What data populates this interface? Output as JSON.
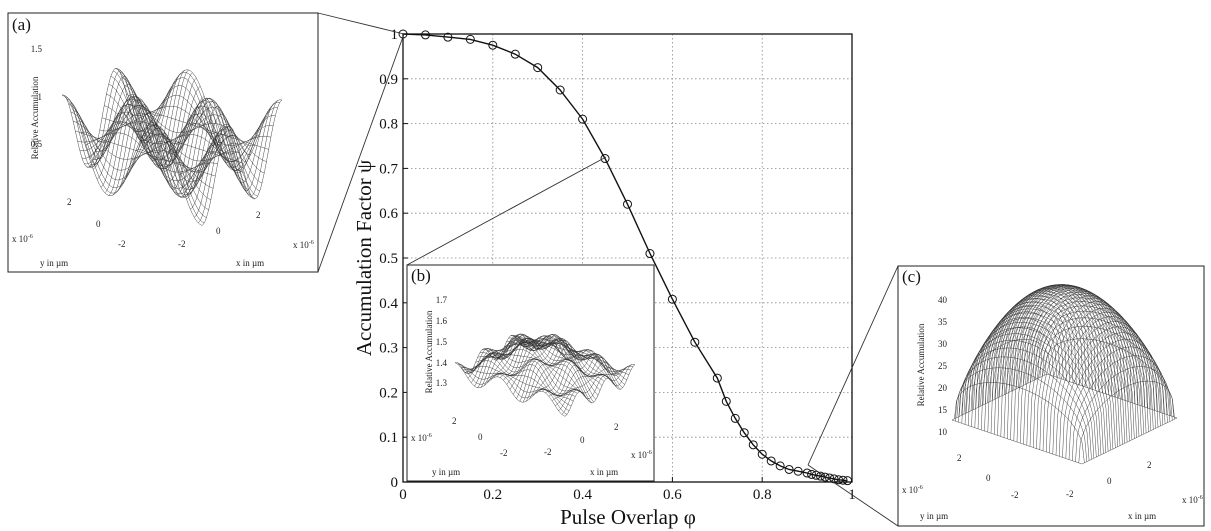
{
  "chart_data": {
    "type": "line",
    "xlabel": "Pulse Overlap φ",
    "ylabel": "Accumulation Factor ψ",
    "xlim": [
      0,
      1
    ],
    "ylim": [
      0,
      1
    ],
    "x_ticks": [
      "0",
      "0.2",
      "0.4",
      "0.6",
      "0.8",
      "1"
    ],
    "y_ticks": [
      "0",
      "0.1",
      "0.2",
      "0.3",
      "0.4",
      "0.5",
      "0.6",
      "0.7",
      "0.8",
      "0.9",
      "1"
    ],
    "grid": true,
    "marker": "circle",
    "series": [
      {
        "x": [
          0.0,
          0.05,
          0.1,
          0.15,
          0.2,
          0.25,
          0.3,
          0.35,
          0.4,
          0.45,
          0.5,
          0.55,
          0.6,
          0.65,
          0.7,
          0.72,
          0.74,
          0.76,
          0.78,
          0.8,
          0.82,
          0.84,
          0.86,
          0.88,
          0.9,
          0.91,
          0.92,
          0.93,
          0.94,
          0.95,
          0.96,
          0.97,
          0.98,
          0.99
        ],
        "y": [
          1.0,
          0.998,
          0.993,
          0.988,
          0.975,
          0.955,
          0.925,
          0.875,
          0.81,
          0.722,
          0.62,
          0.51,
          0.408,
          0.312,
          0.232,
          0.18,
          0.142,
          0.11,
          0.083,
          0.062,
          0.047,
          0.036,
          0.028,
          0.024,
          0.02,
          0.017,
          0.015,
          0.013,
          0.011,
          0.009,
          0.007,
          0.005,
          0.004,
          0.003
        ]
      }
    ]
  },
  "insets": {
    "a": {
      "letter": "(a)",
      "zlabel": "Relative Accumulation",
      "z_ticks": [
        "1.5",
        "1",
        "0.5"
      ],
      "y_ticks": [
        "2",
        "0",
        "-2"
      ],
      "x_ticks": [
        "-2",
        "0",
        "2"
      ],
      "x_scale": "x 10",
      "x_scale_exp": "-6",
      "y_scale": "x 10",
      "y_scale_exp": "-6",
      "ylabel": "y in µm",
      "xlabel": "x in µm"
    },
    "b": {
      "letter": "(b)",
      "zlabel": "Relative Accumulation",
      "z_ticks": [
        "1.7",
        "1.6",
        "1.5",
        "1.4",
        "1.3"
      ],
      "y_ticks": [
        "2",
        "0",
        "-2"
      ],
      "x_ticks": [
        "-2",
        "0",
        "2"
      ],
      "x_scale": "x 10",
      "x_scale_exp": "-6",
      "y_scale": "x 10",
      "y_scale_exp": "-6",
      "ylabel": "y in µm",
      "xlabel": "x in µm"
    },
    "c": {
      "letter": "(c)",
      "zlabel": "Relative Accumulation",
      "z_ticks": [
        "40",
        "35",
        "30",
        "25",
        "20",
        "15",
        "10"
      ],
      "y_ticks": [
        "2",
        "0",
        "-2"
      ],
      "x_ticks": [
        "-2",
        "0",
        "2"
      ],
      "x_scale": "x 10",
      "x_scale_exp": "-6",
      "y_scale": "x 10",
      "y_scale_exp": "-6",
      "ylabel": "y in µm",
      "xlabel": "x in µm"
    }
  }
}
